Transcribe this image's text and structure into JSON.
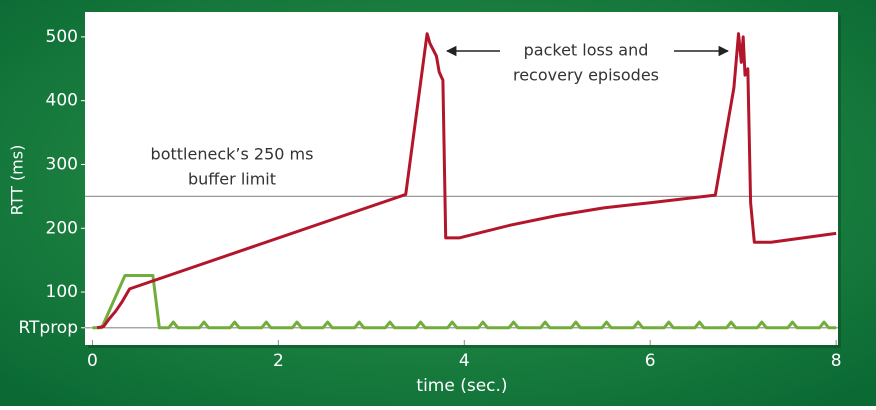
{
  "chart_data": {
    "type": "line",
    "x_label": "time (sec.)",
    "y_label": "RTT (ms)",
    "xlim": [
      -0.08,
      8.02
    ],
    "ylim": [
      17,
      539
    ],
    "xticks": [
      0,
      2,
      4,
      6,
      8
    ],
    "yticks": [
      {
        "value": 44,
        "label": "RTprop"
      },
      100,
      200,
      300,
      400,
      500
    ],
    "reference_lines": [
      250,
      44
    ],
    "annotations": [
      "bottleneck’s 250 ms",
      "buffer limit",
      "packet loss and",
      "recovery episodes"
    ],
    "series": [
      {
        "color": "#b3162b",
        "x": [
          0.05,
          0.12,
          0.18,
          0.25,
          0.32,
          0.4,
          3.37,
          3.6,
          3.63,
          3.7,
          3.73,
          3.77,
          3.8,
          3.95,
          4.5,
          5.0,
          5.5,
          6.0,
          6.7,
          6.9,
          6.95,
          6.98,
          7.0,
          7.02,
          7.05,
          7.08,
          7.12,
          7.3,
          7.9,
          8.0
        ],
        "values": [
          44,
          46,
          58,
          70,
          85,
          105,
          253,
          505,
          490,
          470,
          445,
          432,
          185,
          185,
          205,
          220,
          232,
          240,
          252,
          420,
          505,
          460,
          500,
          440,
          450,
          240,
          178,
          178,
          190,
          192
        ]
      },
      {
        "color": "#72ad3c",
        "x": [
          0,
          0.1,
          0.35,
          0.65,
          0.72,
          0.82,
          0.87,
          0.92,
          1.15,
          1.2,
          1.25,
          1.48,
          1.53,
          1.58,
          1.82,
          1.87,
          1.92,
          2.15,
          2.2,
          2.25,
          2.48,
          2.53,
          2.58,
          2.82,
          2.87,
          2.92,
          3.15,
          3.2,
          3.25,
          3.48,
          3.53,
          3.58,
          3.82,
          3.87,
          3.92,
          4.15,
          4.2,
          4.25,
          4.48,
          4.53,
          4.58,
          4.82,
          4.87,
          4.92,
          5.15,
          5.2,
          5.25,
          5.48,
          5.53,
          5.58,
          5.82,
          5.87,
          5.92,
          6.15,
          6.2,
          6.25,
          6.48,
          6.53,
          6.58,
          6.82,
          6.87,
          6.92,
          7.15,
          7.2,
          7.25,
          7.48,
          7.53,
          7.58,
          7.82,
          7.87,
          7.92,
          8.0
        ],
        "values": [
          44,
          44,
          126,
          126,
          44,
          44,
          53,
          44,
          44,
          53,
          44,
          44,
          53,
          44,
          44,
          53,
          44,
          44,
          53,
          44,
          44,
          53,
          44,
          44,
          53,
          44,
          44,
          53,
          44,
          44,
          53,
          44,
          44,
          53,
          44,
          44,
          53,
          44,
          44,
          53,
          44,
          44,
          53,
          44,
          44,
          53,
          44,
          44,
          53,
          44,
          44,
          53,
          44,
          44,
          53,
          44,
          44,
          53,
          44,
          44,
          53,
          44,
          44,
          53,
          44,
          44,
          53,
          44,
          44,
          53,
          44,
          44
        ]
      }
    ]
  }
}
